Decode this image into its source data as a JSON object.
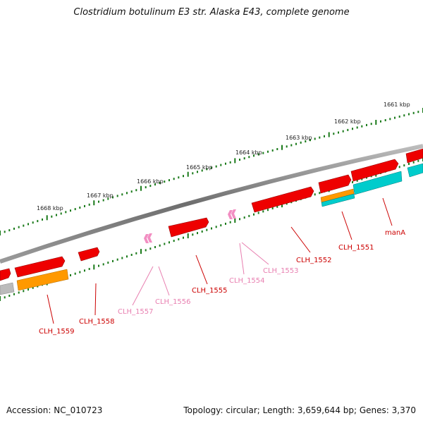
{
  "title": "Clostridium botulinum E3 str. Alaska E43, complete genome",
  "footer": {
    "accession": "Accession: NC_010723",
    "summary": "Topology: circular; Length: 3,659,644 bp; Genes: 3,370"
  },
  "kbp_labels": [
    "1661 kbp",
    "1662 kbp",
    "1663 kbp",
    "1664 kbp",
    "1665 kbp",
    "1666 kbp",
    "1667 kbp",
    "1668 kbp"
  ],
  "gene_labels": [
    "manA",
    "CLH_1551",
    "CLH_1552",
    "CLH_1553",
    "CLH_1554",
    "CLH_1555",
    "CLH_1556",
    "CLH_1557",
    "CLH_1558",
    "CLH_1559"
  ],
  "colors": {
    "gene": "#ee0000",
    "pseudo_gene": "#f28ec2",
    "cds_orange": "#ff9900",
    "cds_cyan": "#00cccc",
    "cds_gray": "#bbbbbb",
    "backbone": "#808080",
    "tick": "#1a7a1a",
    "label_red": "#cc0000",
    "label_pink": "#e87fb0"
  }
}
